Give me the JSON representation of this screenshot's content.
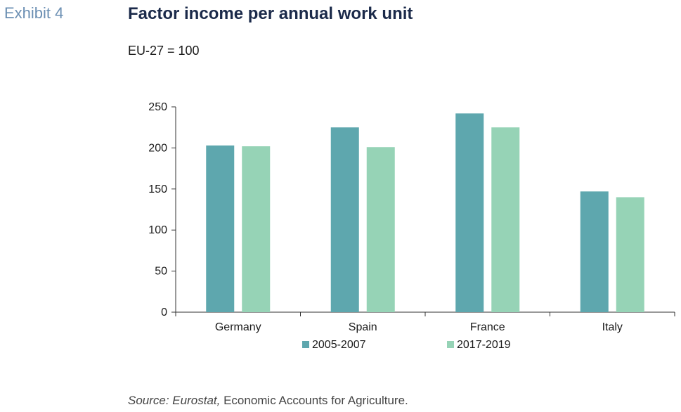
{
  "header": {
    "exhibit": "Exhibit 4",
    "title": "Factor income per annual work unit",
    "subtitle": "EU-27 = 100"
  },
  "source": {
    "prefix": "Source: Eurostat,",
    "text": " Economic Accounts for Agriculture."
  },
  "colors": {
    "series_1": "#5ea7ae",
    "series_2": "#96d3b6",
    "axis": "#333333"
  },
  "chart_data": {
    "type": "bar",
    "title": "Factor income per annual work unit",
    "subtitle": "EU-27 = 100",
    "categories": [
      "Germany",
      "Spain",
      "France",
      "Italy"
    ],
    "series": [
      {
        "name": "2005-2007",
        "values": [
          203,
          225,
          242,
          147
        ]
      },
      {
        "name": "2017-2019",
        "values": [
          202,
          201,
          225,
          140
        ]
      }
    ],
    "ylim": [
      0,
      250
    ],
    "yticks": [
      0,
      50,
      100,
      150,
      200,
      250
    ],
    "grid": false,
    "legend": "bottom"
  }
}
